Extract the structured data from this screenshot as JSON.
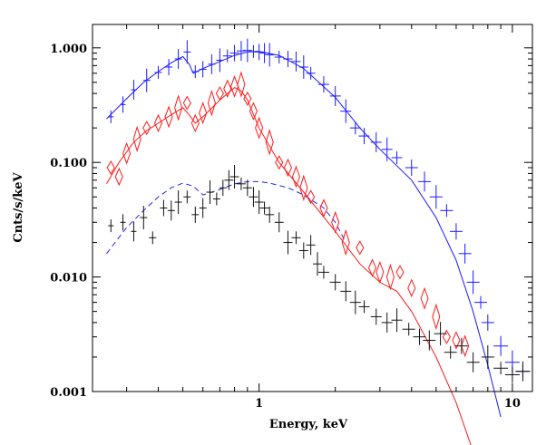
{
  "chart_data": {
    "type": "scatter",
    "title": "",
    "xlabel": "Energy, keV",
    "ylabel": "Cnts/s/keV",
    "xscale": "log",
    "yscale": "log",
    "xlim": [
      0.22,
      12
    ],
    "ylim": [
      0.001,
      1.6
    ],
    "x_tick_labels": [
      {
        "value": 1,
        "label": "1"
      },
      {
        "value": 10,
        "label": "10"
      }
    ],
    "y_tick_labels": [
      {
        "value": 0.001,
        "label": "0.001"
      },
      {
        "value": 0.01,
        "label": "0.010"
      },
      {
        "value": 0.1,
        "label": "0.100"
      },
      {
        "value": 1,
        "label": "1.000"
      }
    ],
    "series": [
      {
        "name": "blue spectrum",
        "color": "#1a1aff",
        "marker": "cross",
        "model": {
          "x": [
            0.25,
            0.3,
            0.35,
            0.4,
            0.45,
            0.5,
            0.53,
            0.55,
            0.6,
            0.7,
            0.8,
            0.9,
            1.0,
            1.2,
            1.5,
            2.0,
            2.5,
            3.0,
            4.0,
            5.0,
            6.0,
            7.0,
            8.0,
            9.0
          ],
          "y": [
            0.24,
            0.36,
            0.5,
            0.62,
            0.74,
            0.84,
            0.72,
            0.6,
            0.66,
            0.76,
            0.86,
            0.92,
            0.93,
            0.86,
            0.66,
            0.37,
            0.2,
            0.13,
            0.07,
            0.033,
            0.014,
            0.005,
            0.0017,
            0.0006
          ]
        },
        "points": {
          "x": [
            0.26,
            0.29,
            0.32,
            0.36,
            0.4,
            0.44,
            0.48,
            0.52,
            0.56,
            0.6,
            0.65,
            0.7,
            0.75,
            0.8,
            0.85,
            0.9,
            0.95,
            1.0,
            1.05,
            1.1,
            1.2,
            1.3,
            1.4,
            1.5,
            1.6,
            1.8,
            2.0,
            2.2,
            2.4,
            2.6,
            2.9,
            3.2,
            3.5,
            4.0,
            4.5,
            5.0,
            5.5,
            6.0,
            6.5,
            7.0,
            7.5,
            8.0,
            9.0,
            10.0,
            11.0
          ],
          "y": [
            0.25,
            0.32,
            0.43,
            0.52,
            0.61,
            0.68,
            0.8,
            0.92,
            0.62,
            0.65,
            0.72,
            0.78,
            0.85,
            0.9,
            0.94,
            0.95,
            0.93,
            0.92,
            0.9,
            0.87,
            0.83,
            0.8,
            0.76,
            0.68,
            0.6,
            0.48,
            0.38,
            0.28,
            0.2,
            0.17,
            0.15,
            0.13,
            0.11,
            0.09,
            0.068,
            0.05,
            0.038,
            0.025,
            0.016,
            0.009,
            0.006,
            0.004,
            0.0025,
            0.0018,
            0.0015
          ]
        }
      },
      {
        "name": "red spectrum",
        "color": "#ff1a1a",
        "marker": "diamond",
        "model": {
          "x": [
            0.25,
            0.28,
            0.32,
            0.36,
            0.4,
            0.45,
            0.5,
            0.53,
            0.56,
            0.6,
            0.7,
            0.8,
            0.85,
            0.9,
            1.0,
            1.2,
            1.5,
            2.0,
            2.5,
            3.0,
            3.5,
            4.0,
            5.0,
            6.0,
            7.0
          ],
          "y": [
            0.065,
            0.1,
            0.15,
            0.19,
            0.22,
            0.26,
            0.3,
            0.26,
            0.22,
            0.25,
            0.35,
            0.45,
            0.42,
            0.35,
            0.2,
            0.1,
            0.055,
            0.025,
            0.013,
            0.009,
            0.0075,
            0.005,
            0.002,
            0.0008,
            0.0003
          ]
        },
        "points": {
          "x": [
            0.26,
            0.28,
            0.3,
            0.33,
            0.36,
            0.4,
            0.44,
            0.48,
            0.52,
            0.56,
            0.6,
            0.65,
            0.7,
            0.75,
            0.8,
            0.85,
            0.9,
            0.95,
            1.0,
            1.1,
            1.2,
            1.3,
            1.4,
            1.5,
            1.6,
            1.8,
            2.0,
            2.2,
            2.5,
            2.8,
            3.0,
            3.3,
            3.6,
            4.0,
            4.5,
            5.0,
            5.5,
            6.0,
            6.5
          ],
          "y": [
            0.09,
            0.075,
            0.12,
            0.16,
            0.2,
            0.22,
            0.25,
            0.3,
            0.33,
            0.22,
            0.27,
            0.33,
            0.4,
            0.44,
            0.46,
            0.48,
            0.36,
            0.28,
            0.2,
            0.15,
            0.1,
            0.09,
            0.075,
            0.06,
            0.05,
            0.04,
            0.03,
            0.02,
            0.018,
            0.012,
            0.011,
            0.01,
            0.011,
            0.008,
            0.0065,
            0.0045,
            0.003,
            0.0028,
            0.0025
          ]
        }
      },
      {
        "name": "black spectrum",
        "color": "#111111",
        "marker": "cross",
        "model": {
          "color": "#2222ee",
          "dashed": true,
          "x": [
            0.25,
            0.3,
            0.35,
            0.4,
            0.45,
            0.5,
            0.55,
            0.6,
            0.7,
            0.8,
            0.9,
            1.0,
            1.1,
            1.3,
            1.5,
            1.8,
            2.0,
            2.2
          ],
          "y": [
            0.016,
            0.027,
            0.038,
            0.05,
            0.06,
            0.066,
            0.062,
            0.052,
            0.058,
            0.065,
            0.068,
            0.068,
            0.066,
            0.06,
            0.052,
            0.04,
            0.03,
            0.02
          ]
        },
        "points": {
          "x": [
            0.26,
            0.29,
            0.32,
            0.35,
            0.38,
            0.42,
            0.45,
            0.48,
            0.52,
            0.56,
            0.6,
            0.64,
            0.68,
            0.72,
            0.76,
            0.8,
            0.85,
            0.9,
            0.95,
            1.0,
            1.05,
            1.1,
            1.2,
            1.3,
            1.4,
            1.5,
            1.6,
            1.7,
            1.8,
            2.0,
            2.2,
            2.4,
            2.6,
            2.9,
            3.2,
            3.5,
            3.9,
            4.3,
            4.7,
            5.2,
            5.7,
            6.3,
            7.0,
            8.0,
            9.0,
            10.0,
            11.0
          ],
          "y": [
            0.028,
            0.03,
            0.025,
            0.033,
            0.022,
            0.04,
            0.038,
            0.045,
            0.05,
            0.035,
            0.04,
            0.055,
            0.048,
            0.06,
            0.07,
            0.075,
            0.065,
            0.06,
            0.05,
            0.045,
            0.04,
            0.035,
            0.03,
            0.02,
            0.022,
            0.017,
            0.019,
            0.013,
            0.011,
            0.009,
            0.0075,
            0.006,
            0.0055,
            0.0045,
            0.004,
            0.0042,
            0.0035,
            0.003,
            0.0028,
            0.0032,
            0.0022,
            0.0025,
            0.0018,
            0.002,
            0.0016,
            0.0014,
            0.0015
          ]
        }
      }
    ]
  }
}
